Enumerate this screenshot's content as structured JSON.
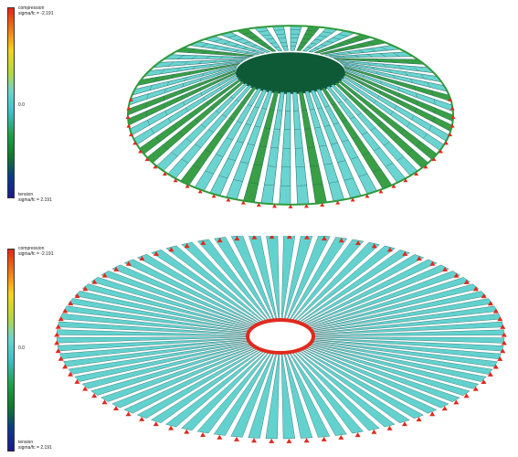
{
  "panels": [
    {
      "legend": {
        "top_line1": "compression",
        "top_line2": "sigma/fc = -2.191",
        "mid": "0.0",
        "bottom_line1": "tension",
        "bottom_line2": "sigma/fc = 2.191"
      }
    },
    {
      "legend": {
        "top_line1": "compression",
        "top_line2": "sigma/fc = -2.191",
        "mid": "0.0",
        "bottom_line1": "tension",
        "bottom_line2": "sigma/fc = 2.191"
      }
    }
  ],
  "colors": {
    "scale": [
      "#e8241c",
      "#f07a12",
      "#f3d51a",
      "#b8d93a",
      "#6fd3cf",
      "#36c0c8",
      "#22a04a",
      "#137a2a",
      "#0b3c83",
      "#1a1a8a"
    ],
    "shell_teal": "#63d2cf",
    "shell_green": "#2f9a3c",
    "support_red": "#e02a1e",
    "grid_line": "#1c5c5a"
  }
}
